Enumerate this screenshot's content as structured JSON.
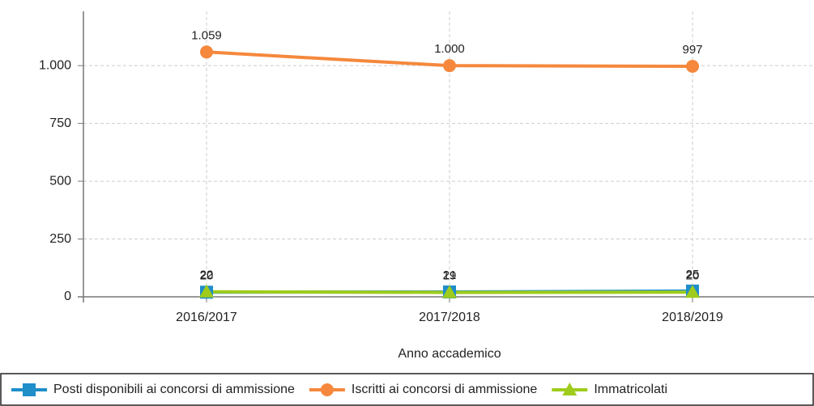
{
  "chart_data": {
    "type": "line",
    "x_label": "Anno accademico",
    "categories": [
      "2016/2017",
      "2017/2018",
      "2018/2019"
    ],
    "series": [
      {
        "name": "Posti disponibili ai concorsi di ammissione",
        "color": "#1f8ec9",
        "marker": "square",
        "values": [
          20,
          21,
          25
        ]
      },
      {
        "name": "Iscritti ai concorsi di ammissione",
        "color": "#f5883c",
        "marker": "circle",
        "values": [
          1059,
          1000,
          997
        ],
        "value_labels": [
          "1.059",
          "1.000",
          "997"
        ]
      },
      {
        "name": "Immatricolati",
        "color": "#9fcc1c",
        "marker": "triangle",
        "values": [
          22,
          19,
          20
        ]
      }
    ],
    "ylim": [
      0,
      1235
    ],
    "yticks": [
      0,
      250,
      500,
      750,
      {
        "value": 1000,
        "label": "1.000"
      }
    ],
    "grid": true,
    "legend": "bottom"
  }
}
